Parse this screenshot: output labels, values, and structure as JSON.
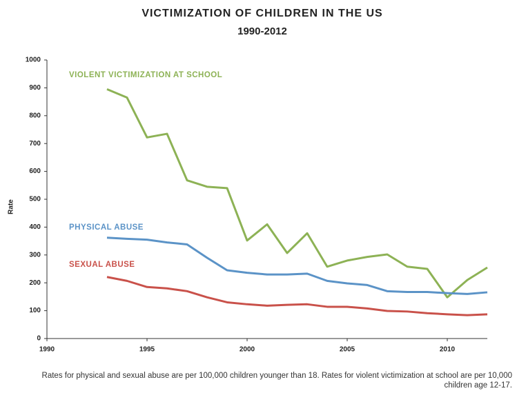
{
  "chart_data": {
    "type": "line",
    "title": "VICTIMIZATION OF CHILDREN IN THE US",
    "subtitle": "1990-2012",
    "y_label": "Rate",
    "x": [
      1993,
      1994,
      1995,
      1996,
      1997,
      1998,
      1999,
      2000,
      2001,
      2002,
      2003,
      2004,
      2005,
      2006,
      2007,
      2008,
      2009,
      2010,
      2011,
      2012
    ],
    "series": [
      {
        "name": "VIOLENT VICTIMIZATION AT SCHOOL",
        "color": "#8db255",
        "values": [
          895,
          865,
          722,
          735,
          568,
          545,
          540,
          352,
          410,
          307,
          378,
          258,
          280,
          293,
          302,
          258,
          250,
          148,
          210,
          255
        ]
      },
      {
        "name": "PHYSICAL ABUSE",
        "color": "#5b93c7",
        "values": [
          362,
          358,
          355,
          345,
          338,
          290,
          245,
          236,
          230,
          230,
          233,
          207,
          198,
          192,
          170,
          167,
          167,
          163,
          160,
          166
        ]
      },
      {
        "name": "SEXUAL ABUSE",
        "color": "#c9514a",
        "values": [
          221,
          207,
          185,
          180,
          170,
          148,
          130,
          123,
          118,
          121,
          123,
          114,
          114,
          108,
          99,
          97,
          91,
          87,
          84,
          87
        ]
      }
    ],
    "xlim": [
      1990,
      2012
    ],
    "xticks": [
      1990,
      1995,
      2000,
      2005,
      2010
    ],
    "ylim": [
      0,
      1000
    ],
    "yticks": [
      0,
      100,
      200,
      300,
      400,
      500,
      600,
      700,
      800,
      900,
      1000
    ],
    "note": "Rates for physical and sexual abuse are per 100,000 children younger than 18. Rates for violent victimization at school are per 10,000 children age 12-17."
  }
}
